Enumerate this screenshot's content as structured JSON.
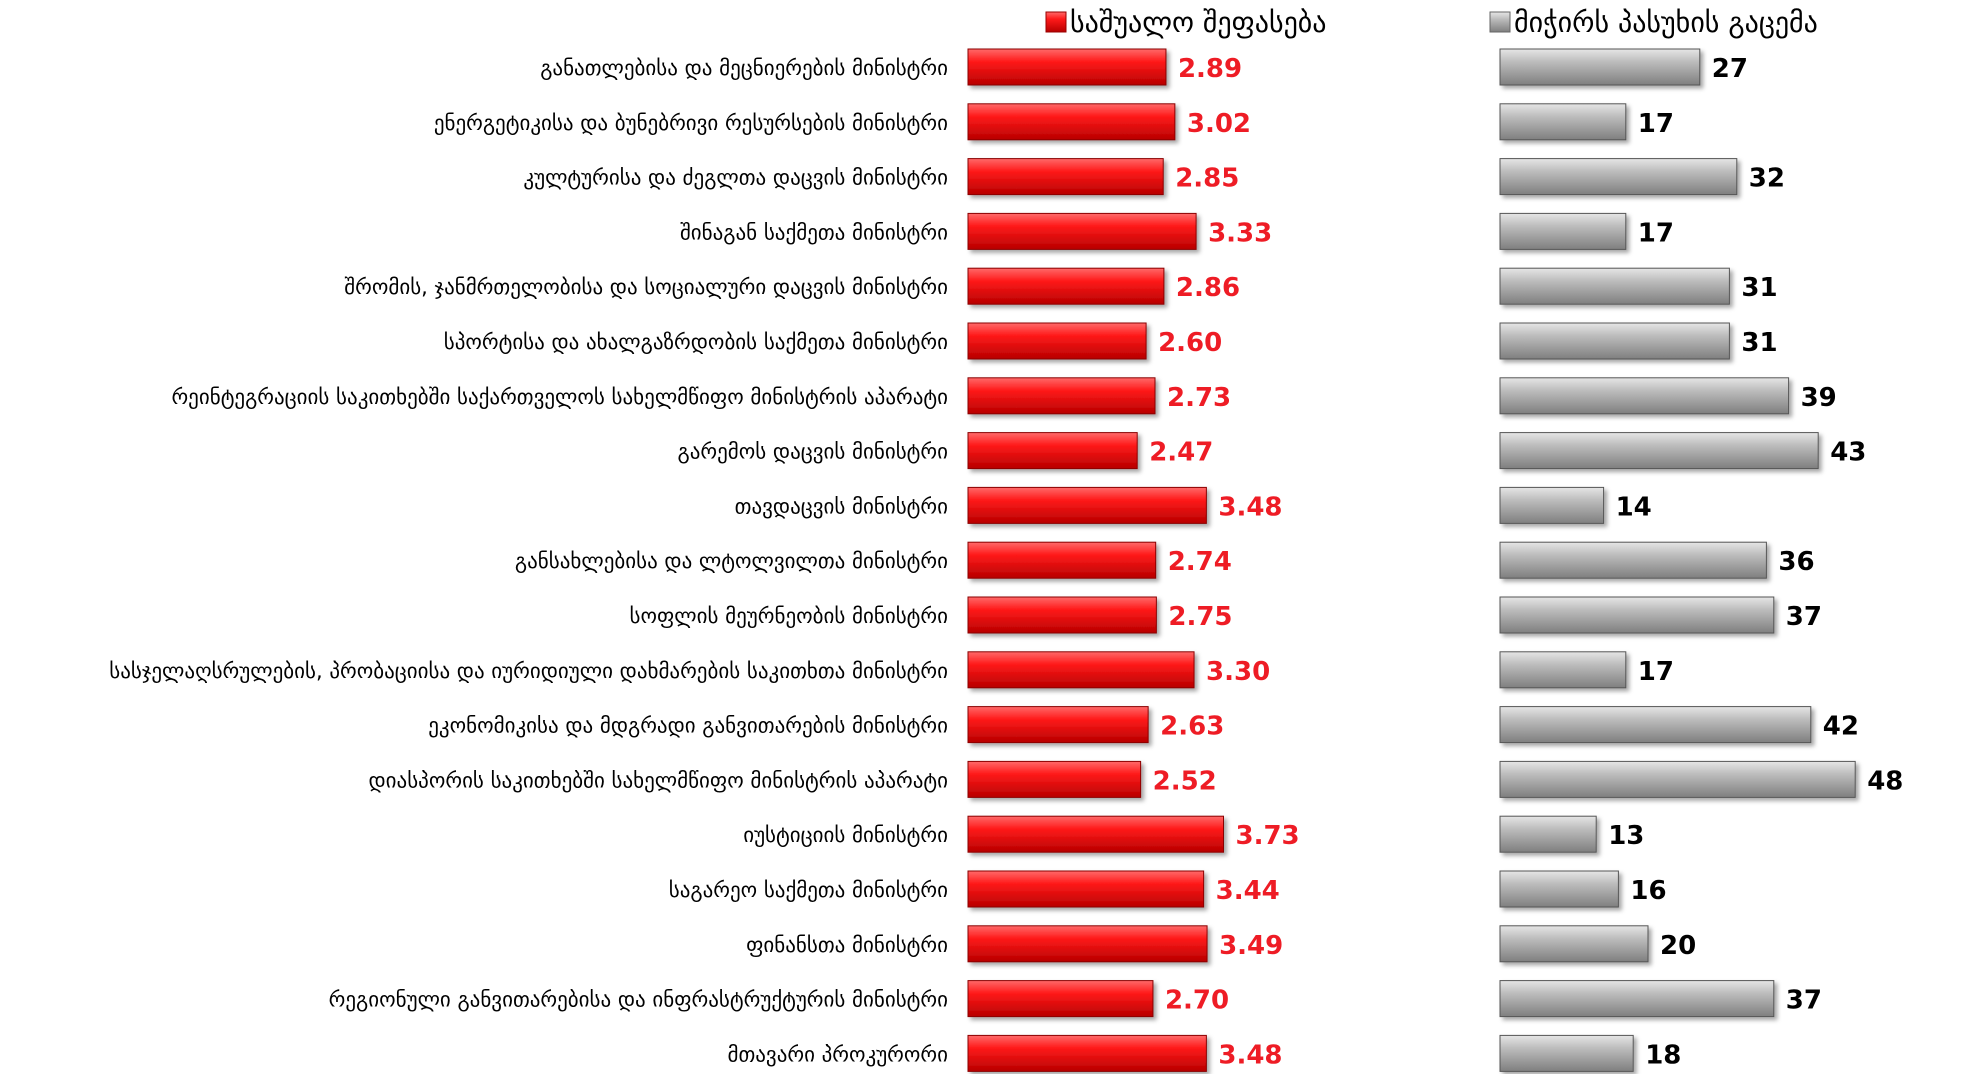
{
  "chart_data": {
    "type": "bar",
    "orientation": "horizontal",
    "categories": [
      "განათლებისა და მეცნიერების მინისტრი",
      "ენერგეტიკისა და ბუნებრივი რესურსების მინისტრი",
      "კულტურისა და ძეგლთა დაცვის მინისტრი",
      "შინაგან საქმეთა მინისტრი",
      "შრომის, ჯანმრთელობისა და სოციალური დაცვის მინისტრი",
      "სპორტისა და ახალგაზრდობის საქმეთა მინისტრი",
      "რეინტეგრაციის საკითხებში საქართველოს სახელმწიფო მინისტრის აპარატი",
      "გარემოს დაცვის მინისტრი",
      "თავდაცვის მინისტრი",
      "განსახლებისა და ლტოლვილთა მინისტრი",
      "სოფლის მეურნეობის მინისტრი",
      "სასჯელაღსრულების, პრობაციისა და იურიდიული დახმარების საკითხთა მინისტრი",
      "ეკონომიკისა და მდგრადი განვითარების მინისტრი",
      "დიასპორის საკითხებში სახელმწიფო მინისტრის აპარატი",
      "იუსტიციის მინისტრი",
      "საგარეო საქმეთა მინისტრი",
      "ფინანსთა მინისტრი",
      "რეგიონული განვითარებისა და ინფრასტრუქტურის მინისტრი",
      "მთავარი პროკურორი"
    ],
    "series": [
      {
        "name": "საშუალო შეფასება",
        "values": [
          2.89,
          3.02,
          2.85,
          3.33,
          2.86,
          2.6,
          2.73,
          2.47,
          3.48,
          2.74,
          2.75,
          3.3,
          2.63,
          2.52,
          3.73,
          3.44,
          3.49,
          2.7,
          3.48
        ],
        "labels": [
          "2.89",
          "3.02",
          "2.85",
          "3.33",
          "2.86",
          "2.60",
          "2.73",
          "2.47",
          "3.48",
          "2.74",
          "2.75",
          "3.30",
          "2.63",
          "2.52",
          "3.73",
          "3.44",
          "3.49",
          "2.70",
          "3.48"
        ],
        "color": "#ee1c25"
      },
      {
        "name": "მიჭირს პასუხის გაცემა",
        "values": [
          27,
          17,
          32,
          17,
          31,
          31,
          39,
          43,
          14,
          36,
          37,
          17,
          42,
          48,
          13,
          16,
          20,
          37,
          18
        ],
        "labels": [
          "27",
          "17",
          "32",
          "17",
          "31",
          "31",
          "39",
          "43",
          "14",
          "36",
          "37",
          "17",
          "42",
          "48",
          "13",
          "16",
          "20",
          "37",
          "18"
        ],
        "color": "#a6a6a6"
      }
    ],
    "legend_position": "top",
    "grid": false
  }
}
